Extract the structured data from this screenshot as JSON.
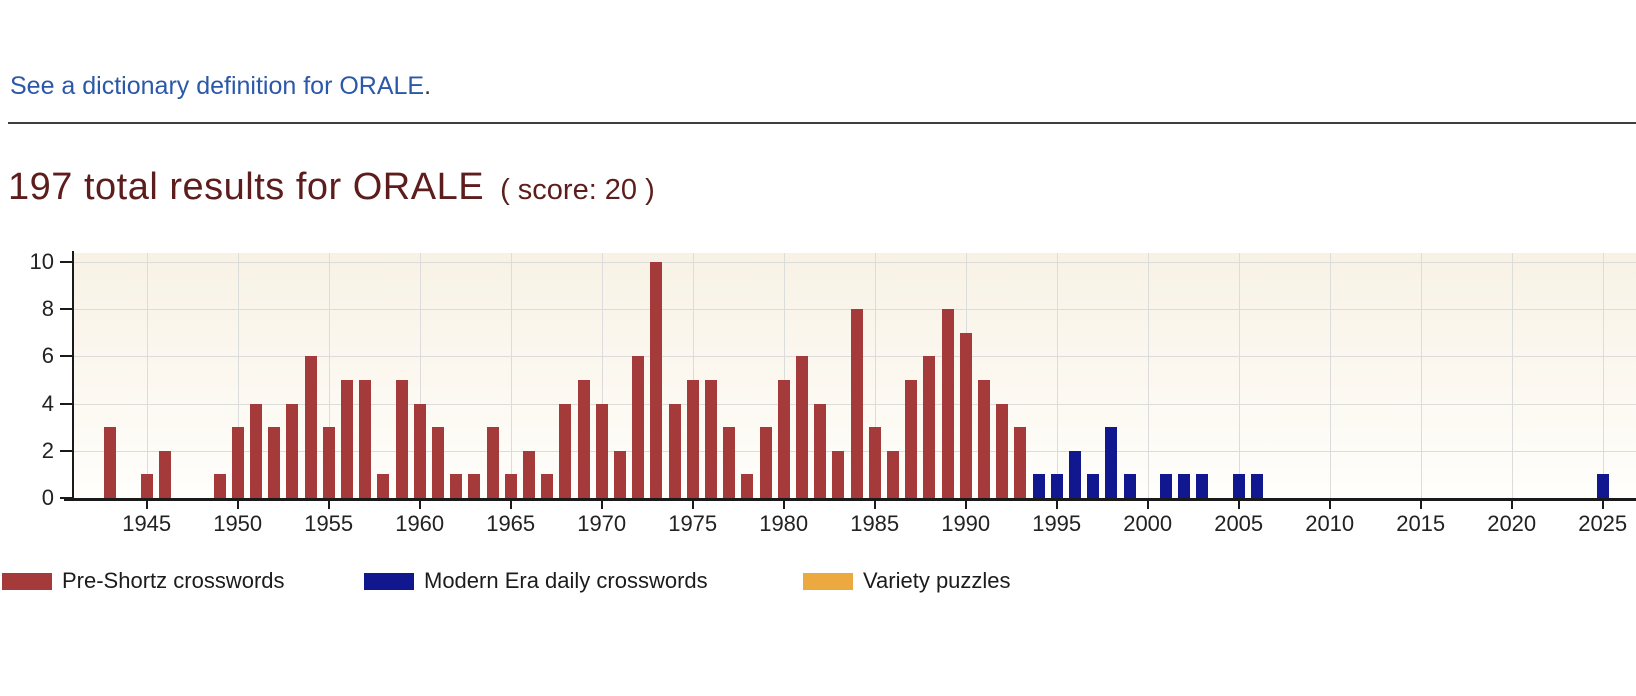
{
  "page": {
    "link_text": "See a dictionary definition for ORALE",
    "link_period": ".",
    "title_main": "197 total results for ORALE",
    "title_score": "( score: 20 )"
  },
  "colors": {
    "link_blue": "#2b58a8",
    "title_maroon": "#5e1d1d",
    "axis": "#1a1a1a",
    "gridline": "#dcdcdc",
    "pre_shortz_red": "#a53a3a",
    "modern_navy": "#10178f",
    "variety_orange": "#eca93f"
  },
  "chart_data": {
    "type": "bar",
    "title": "",
    "xlabel": "",
    "ylabel": "",
    "x_range": [
      1942,
      2026
    ],
    "ylim": [
      0,
      10
    ],
    "y_ticks": [
      0,
      2,
      4,
      6,
      8,
      10
    ],
    "x_tick_labels": [
      "1945",
      "1950",
      "1955",
      "1960",
      "1965",
      "1970",
      "1975",
      "1980",
      "1985",
      "1990",
      "1995",
      "2000",
      "2005",
      "2010",
      "2015",
      "2020",
      "2025"
    ],
    "grid": true,
    "legend_position": "bottom",
    "series": [
      {
        "name": "Pre-Shortz crosswords",
        "color_key": "pre_shortz_red",
        "points": [
          [
            1943,
            3
          ],
          [
            1945,
            1
          ],
          [
            1946,
            2
          ],
          [
            1949,
            1
          ],
          [
            1950,
            3
          ],
          [
            1951,
            4
          ],
          [
            1952,
            3
          ],
          [
            1953,
            4
          ],
          [
            1954,
            6
          ],
          [
            1955,
            3
          ],
          [
            1956,
            5
          ],
          [
            1957,
            5
          ],
          [
            1958,
            1
          ],
          [
            1959,
            5
          ],
          [
            1960,
            4
          ],
          [
            1961,
            3
          ],
          [
            1962,
            1
          ],
          [
            1963,
            1
          ],
          [
            1964,
            3
          ],
          [
            1965,
            1
          ],
          [
            1966,
            2
          ],
          [
            1967,
            1
          ],
          [
            1968,
            4
          ],
          [
            1969,
            5
          ],
          [
            1970,
            4
          ],
          [
            1971,
            2
          ],
          [
            1972,
            6
          ],
          [
            1973,
            10
          ],
          [
            1974,
            4
          ],
          [
            1975,
            5
          ],
          [
            1976,
            5
          ],
          [
            1977,
            3
          ],
          [
            1978,
            1
          ],
          [
            1979,
            3
          ],
          [
            1980,
            5
          ],
          [
            1981,
            6
          ],
          [
            1982,
            4
          ],
          [
            1983,
            2
          ],
          [
            1984,
            8
          ],
          [
            1985,
            3
          ],
          [
            1986,
            2
          ],
          [
            1987,
            5
          ],
          [
            1988,
            6
          ],
          [
            1989,
            8
          ],
          [
            1990,
            7
          ],
          [
            1991,
            5
          ],
          [
            1992,
            4
          ],
          [
            1993,
            3
          ]
        ]
      },
      {
        "name": "Modern Era daily crosswords",
        "color_key": "modern_navy",
        "points": [
          [
            1994,
            1
          ],
          [
            1995,
            1
          ],
          [
            1996,
            2
          ],
          [
            1997,
            1
          ],
          [
            1998,
            3
          ],
          [
            1999,
            1
          ],
          [
            2001,
            1
          ],
          [
            2002,
            1
          ],
          [
            2003,
            1
          ],
          [
            2005,
            1
          ],
          [
            2006,
            1
          ],
          [
            2025,
            1
          ]
        ]
      },
      {
        "name": "Variety puzzles",
        "color_key": "variety_orange",
        "points": []
      }
    ],
    "legend": [
      {
        "label": "Pre-Shortz crosswords",
        "color_key": "pre_shortz_red"
      },
      {
        "label": "Modern Era daily crosswords",
        "color_key": "modern_navy"
      },
      {
        "label": "Variety puzzles",
        "color_key": "variety_orange"
      }
    ]
  }
}
